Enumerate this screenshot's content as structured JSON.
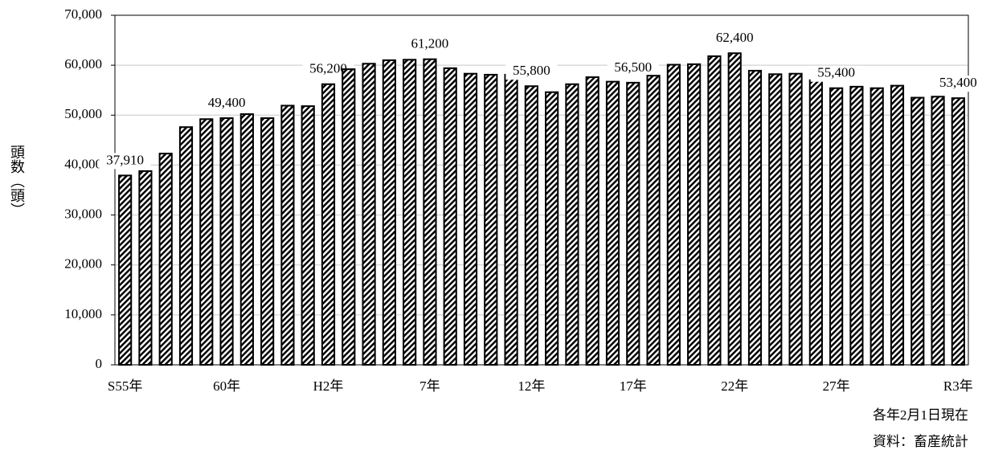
{
  "chart_data": {
    "type": "bar",
    "y_label": "頭数（頭）",
    "notes": [
      "各年2月1日現在",
      "資料：畜産統計"
    ],
    "categories": [
      "S55年",
      null,
      null,
      null,
      null,
      "60年",
      null,
      null,
      null,
      null,
      "H2年",
      null,
      null,
      null,
      null,
      "7年",
      null,
      null,
      null,
      null,
      "12年",
      null,
      null,
      null,
      null,
      "17年",
      null,
      null,
      null,
      null,
      "22年",
      null,
      null,
      null,
      null,
      "27年",
      null,
      null,
      null,
      null,
      null,
      "R3年"
    ],
    "values": [
      37910,
      38800,
      42300,
      47600,
      49200,
      49400,
      50200,
      49400,
      51900,
      51800,
      56200,
      59200,
      60300,
      61000,
      61100,
      61200,
      59400,
      58300,
      58100,
      58100,
      55800,
      54600,
      56200,
      57600,
      56700,
      56500,
      57900,
      60100,
      60200,
      61800,
      62400,
      58900,
      58200,
      58300,
      57000,
      55400,
      55700,
      55400,
      55900,
      53500,
      53700,
      53400
    ],
    "value_labels": [
      "37,910",
      null,
      null,
      null,
      null,
      "49,400",
      null,
      null,
      null,
      null,
      "56,200",
      null,
      null,
      null,
      null,
      "61,200",
      null,
      null,
      null,
      null,
      "55,800",
      null,
      null,
      null,
      null,
      "56,500",
      null,
      null,
      null,
      null,
      "62,400",
      null,
      null,
      null,
      null,
      "55,400",
      null,
      null,
      null,
      null,
      null,
      "53,400"
    ],
    "color": "#000000",
    "ylim": [
      0,
      70000
    ],
    "yticks": [
      0,
      {
        "value": 10000,
        "label": "10,000"
      },
      {
        "value": 20000,
        "label": "20,000"
      },
      {
        "value": 30000,
        "label": "30,000"
      },
      {
        "value": 40000,
        "label": "40,000"
      },
      {
        "value": 50000,
        "label": "50,000"
      },
      {
        "value": 60000,
        "label": "60,000"
      },
      {
        "value": 70000,
        "label": "70,000"
      }
    ],
    "grid": true
  }
}
